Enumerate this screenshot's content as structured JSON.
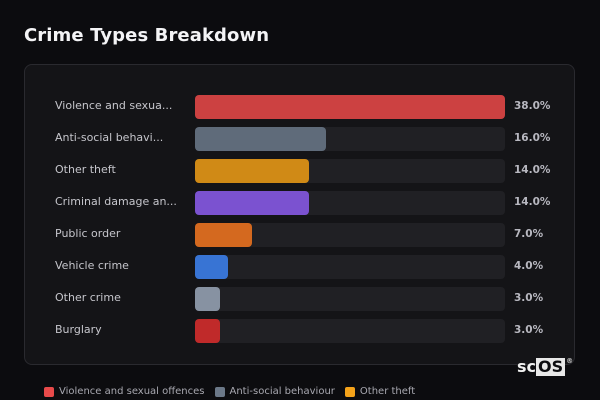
{
  "header": {
    "title": "Crime Types Breakdown"
  },
  "chart_data": {
    "type": "bar",
    "orientation": "horizontal",
    "title": "Crime Types Breakdown",
    "categories": [
      "Violence and sexual offences",
      "Anti-social behaviour",
      "Other theft",
      "Criminal damage and arson",
      "Public order",
      "Vehicle crime",
      "Other crime",
      "Burglary"
    ],
    "display_labels": [
      "Violence and sexua...",
      "Anti-social behavi...",
      "Other theft",
      "Criminal damage an...",
      "Public order",
      "Vehicle crime",
      "Other crime",
      "Burglary"
    ],
    "values": [
      38.0,
      16.0,
      14.0,
      14.0,
      7.0,
      4.0,
      3.0,
      3.0
    ],
    "value_labels": [
      "38.0%",
      "16.0%",
      "14.0%",
      "14.0%",
      "7.0%",
      "4.0%",
      "3.0%",
      "3.0%"
    ],
    "colors": [
      "#cc4141",
      "#5f6b7a",
      "#d08a16",
      "#7b52d0",
      "#d4691f",
      "#3874d4",
      "#8792a2",
      "#c02a2a"
    ],
    "xlim": [
      0,
      38
    ],
    "grid": false,
    "legend": {
      "position": "bottom",
      "entries": [
        {
          "label": "Violence and sexual offences",
          "color": "#e84a4a"
        },
        {
          "label": "Anti-social behaviour",
          "color": "#6b7888"
        },
        {
          "label": "Other theft",
          "color": "#f5a31a"
        }
      ]
    }
  },
  "branding": {
    "logo_sc": "sc",
    "logo_os": "OS",
    "logo_mark": "®"
  }
}
